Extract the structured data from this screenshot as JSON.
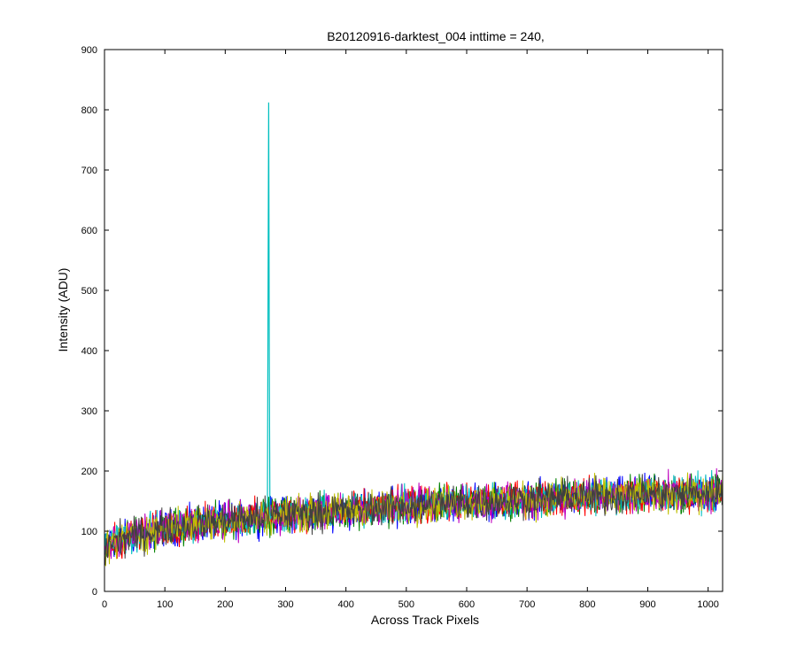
{
  "chart_data": {
    "type": "line",
    "title": "B20120916-darktest_004 inttime = 240,",
    "xlabel": "Across Track Pixels",
    "ylabel": "Intensity (ADU)",
    "xlim": [
      0,
      1024
    ],
    "ylim": [
      0,
      900
    ],
    "xticks": [
      0,
      100,
      200,
      300,
      400,
      500,
      600,
      700,
      800,
      900,
      1000
    ],
    "yticks": [
      0,
      100,
      200,
      300,
      400,
      500,
      600,
      700,
      800,
      900
    ],
    "grid": false,
    "legend": "none",
    "trend": {
      "x": [
        0,
        100,
        200,
        300,
        400,
        500,
        600,
        700,
        800,
        900,
        1024
      ],
      "y": [
        80,
        105,
        118,
        128,
        135,
        142,
        148,
        153,
        158,
        161,
        163
      ]
    },
    "noise_amplitude": 18,
    "spike": {
      "x": [
        270,
        271,
        272,
        273,
        274,
        275,
        276
      ],
      "y": [
        140,
        495,
        812,
        390,
        130,
        120,
        125
      ]
    },
    "series_colors": [
      "#0000ff",
      "#008000",
      "#ff0000",
      "#00bfbf",
      "#bf00bf",
      "#bfbf00",
      "#404040"
    ],
    "spike_color": "#00bfbf"
  }
}
